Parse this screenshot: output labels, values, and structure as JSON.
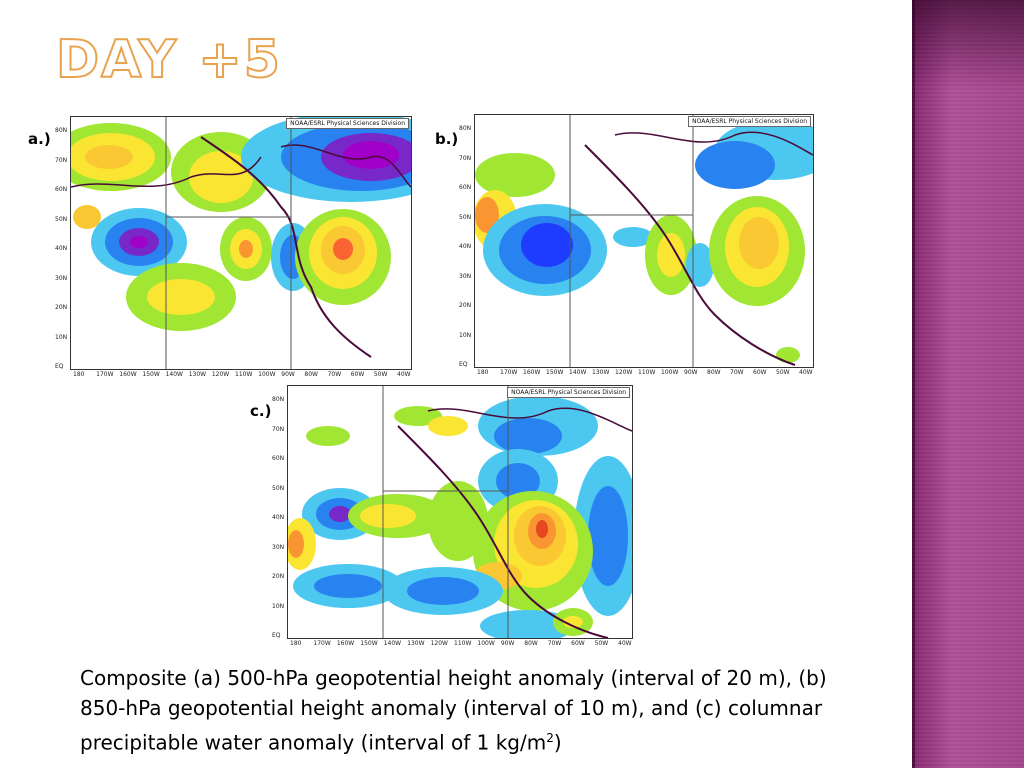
{
  "slide": {
    "title": "DAY +5"
  },
  "panels": [
    {
      "id": "a",
      "label": "a.)",
      "credit": "NOAA/ESRL Physical Sciences Division"
    },
    {
      "id": "b",
      "label": "b.)",
      "credit": "NOAA/ESRL Physical Sciences Division"
    },
    {
      "id": "c",
      "label": "c.)",
      "credit": "NOAA/ESRL Physical Sciences Division"
    }
  ],
  "axes": {
    "lat_labels": [
      "80N",
      "70N",
      "60N",
      "50N",
      "40N",
      "30N",
      "20N",
      "10N",
      "EQ"
    ],
    "lon_labels": [
      "180",
      "170W",
      "160W",
      "150W",
      "140W",
      "130W",
      "120W",
      "110W",
      "100W",
      "90W",
      "80W",
      "70W",
      "60W",
      "50W",
      "40W"
    ]
  },
  "caption": {
    "text": "Composite (a) 500-hPa geopotential height anomaly (interval of 20 m), (b) 850-hPa geopotential height anomaly (interval of 10 m), and (c) columnar precipitable water anomaly (interval of 1 kg/m",
    "sup": "2",
    "end": ")"
  },
  "colors": {
    "accent_band": "#a4458c",
    "title_outline": "#e9a24e",
    "anomaly_positive": [
      "#a0e632",
      "#fae632",
      "#fac832",
      "#fa9632",
      "#e64620"
    ],
    "anomaly_negative": [
      "#4cc8f0",
      "#2882f0",
      "#1e3cff",
      "#7828c8",
      "#a000c8"
    ]
  }
}
